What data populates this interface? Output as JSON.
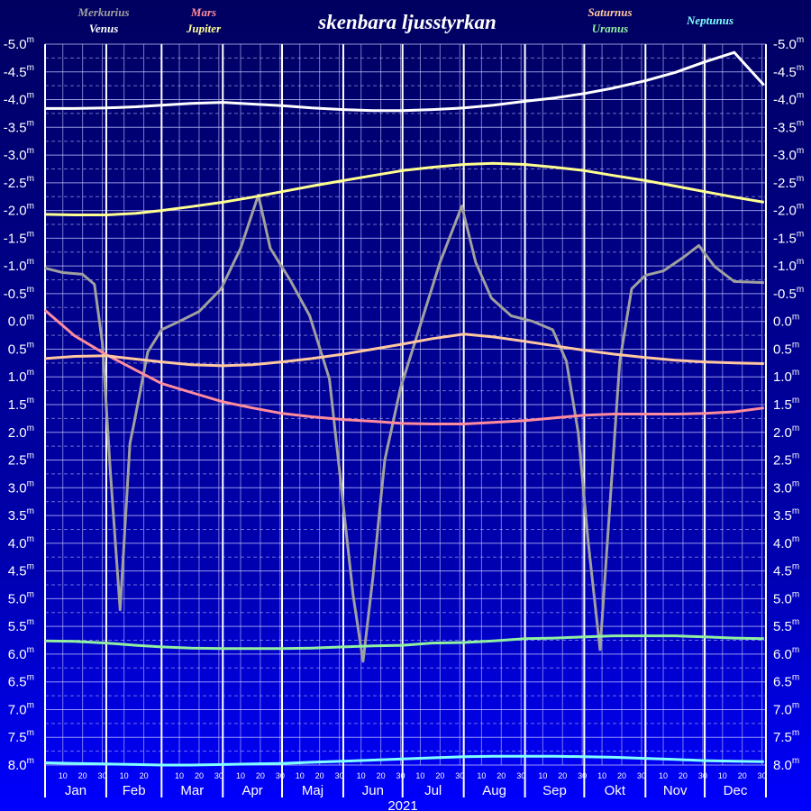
{
  "chart_data": {
    "type": "line",
    "title": "skenbara ljusstyrkan",
    "xlabel": "2021",
    "months": [
      "Jan",
      "Feb",
      "Mar",
      "Apr",
      "Maj",
      "Jun",
      "Jul",
      "Aug",
      "Sep",
      "Okt",
      "Nov",
      "Dec"
    ],
    "day_ticks": [
      10,
      20,
      30
    ],
    "xlim": [
      "2021-01-01",
      "2022-01-01"
    ],
    "ylim": [
      -5,
      8
    ],
    "invert_y": true,
    "y_unit": "m",
    "yticks": [
      {
        "value": -5,
        "label": "-5.0"
      },
      -4.5,
      {
        "value": -4,
        "label": "-4.0"
      },
      -3.5,
      {
        "value": -3,
        "label": "-3.0"
      },
      -2.5,
      {
        "value": -2,
        "label": "-2.0"
      },
      -1.5,
      {
        "value": -1,
        "label": "-1.0"
      },
      -0.5,
      {
        "value": 0,
        "label": "0.0"
      },
      0.5,
      {
        "value": 1,
        "label": "1.0"
      },
      1.5,
      {
        "value": 2,
        "label": "2.0"
      },
      2.5,
      {
        "value": 3,
        "label": "3.0"
      },
      3.5,
      {
        "value": 4,
        "label": "4.0"
      },
      4.5,
      {
        "value": 5,
        "label": "5.0"
      },
      5.5,
      {
        "value": 6,
        "label": "6.0"
      },
      6.5,
      {
        "value": 7,
        "label": "7.0"
      },
      7.5,
      {
        "value": 8,
        "label": "8.0"
      }
    ],
    "grid": true,
    "x": [
      "2021-01-01",
      "2021-01-16",
      "2021-02-01",
      "2021-02-16",
      "2021-03-01",
      "2021-03-16",
      "2021-04-01",
      "2021-04-16",
      "2021-05-01",
      "2021-05-16",
      "2021-06-01",
      "2021-06-16",
      "2021-07-01",
      "2021-07-16",
      "2021-08-01",
      "2021-08-16",
      "2021-09-01",
      "2021-09-16",
      "2021-10-01",
      "2021-10-16",
      "2021-11-01",
      "2021-11-16",
      "2021-12-01",
      "2021-12-16",
      "2021-12-31"
    ],
    "series": [
      {
        "name": "Merkurius",
        "color": "#a0a0a0",
        "x": [
          "2021-01-01",
          "2021-01-10",
          "2021-01-20",
          "2021-01-26",
          "2021-01-30",
          "2021-02-03",
          "2021-02-08",
          "2021-02-13",
          "2021-02-15",
          "2021-02-22",
          "2021-03-01",
          "2021-03-10",
          "2021-03-20",
          "2021-03-31",
          "2021-04-10",
          "2021-04-19",
          "2021-04-25",
          "2021-05-05",
          "2021-05-15",
          "2021-05-25",
          "2021-06-01",
          "2021-06-06",
          "2021-06-11",
          "2021-06-16",
          "2021-06-22",
          "2021-06-30",
          "2021-07-10",
          "2021-07-20",
          "2021-07-31",
          "2021-08-07",
          "2021-08-15",
          "2021-08-25",
          "2021-09-05",
          "2021-09-15",
          "2021-09-22",
          "2021-09-28",
          "2021-10-03",
          "2021-10-09",
          "2021-10-14",
          "2021-10-19",
          "2021-10-25",
          "2021-11-01",
          "2021-11-10",
          "2021-11-20",
          "2021-11-28",
          "2021-12-06",
          "2021-12-16",
          "2021-12-31"
        ],
        "values": [
          -0.96,
          -0.88,
          -0.85,
          -0.67,
          0.39,
          2.67,
          5.2,
          2.2,
          1.85,
          0.55,
          0.15,
          0.0,
          -0.18,
          -0.58,
          -1.32,
          -2.28,
          -1.32,
          -0.75,
          -0.1,
          1.04,
          3.32,
          4.94,
          6.13,
          4.62,
          2.5,
          1.2,
          0.07,
          -1.07,
          -2.08,
          -1.07,
          -0.42,
          -0.1,
          0.0,
          0.15,
          0.72,
          2.02,
          3.97,
          5.92,
          3.32,
          0.72,
          -0.59,
          -0.83,
          -0.91,
          -1.15,
          -1.37,
          -0.99,
          -0.72,
          -0.7
        ]
      },
      {
        "name": "Venus",
        "color": "#ffffff",
        "values": [
          -3.84,
          -3.84,
          -3.85,
          -3.87,
          -3.9,
          -3.93,
          -3.95,
          -3.92,
          -3.89,
          -3.85,
          -3.82,
          -3.8,
          -3.8,
          -3.82,
          -3.85,
          -3.9,
          -3.97,
          -4.03,
          -4.11,
          -4.21,
          -4.34,
          -4.49,
          -4.68,
          -4.85,
          -4.26
        ]
      },
      {
        "name": "Mars",
        "color": "#ff8c9c",
        "values": [
          -0.2,
          0.26,
          0.6,
          0.88,
          1.12,
          1.28,
          1.45,
          1.56,
          1.66,
          1.72,
          1.77,
          1.8,
          1.84,
          1.85,
          1.85,
          1.82,
          1.79,
          1.74,
          1.69,
          1.67,
          1.67,
          1.67,
          1.66,
          1.63,
          1.56
        ]
      },
      {
        "name": "Jupiter",
        "color": "#ffff90",
        "values": [
          -1.93,
          -1.92,
          -1.92,
          -1.95,
          -2.0,
          -2.07,
          -2.15,
          -2.24,
          -2.34,
          -2.44,
          -2.54,
          -2.63,
          -2.72,
          -2.78,
          -2.83,
          -2.85,
          -2.83,
          -2.78,
          -2.72,
          -2.63,
          -2.54,
          -2.44,
          -2.34,
          -2.24,
          -2.15
        ]
      },
      {
        "name": "Saturnus",
        "color": "#ffc8a0",
        "values": [
          0.67,
          0.63,
          0.62,
          0.68,
          0.73,
          0.78,
          0.8,
          0.78,
          0.73,
          0.67,
          0.59,
          0.5,
          0.41,
          0.31,
          0.23,
          0.28,
          0.36,
          0.44,
          0.52,
          0.59,
          0.65,
          0.7,
          0.73,
          0.75,
          0.76
        ]
      },
      {
        "name": "Uranus",
        "color": "#90f0a0",
        "values": [
          5.76,
          5.77,
          5.8,
          5.84,
          5.87,
          5.89,
          5.9,
          5.9,
          5.9,
          5.89,
          5.87,
          5.85,
          5.84,
          5.8,
          5.79,
          5.76,
          5.72,
          5.71,
          5.69,
          5.67,
          5.67,
          5.67,
          5.69,
          5.71,
          5.72
        ]
      },
      {
        "name": "Neptunus",
        "color": "#80ffff",
        "values": [
          7.96,
          7.97,
          7.98,
          7.99,
          8.0,
          8.0,
          7.99,
          7.98,
          7.97,
          7.95,
          7.93,
          7.91,
          7.89,
          7.87,
          7.85,
          7.84,
          7.84,
          7.84,
          7.85,
          7.86,
          7.88,
          7.9,
          7.92,
          7.93,
          7.94
        ]
      }
    ]
  }
}
